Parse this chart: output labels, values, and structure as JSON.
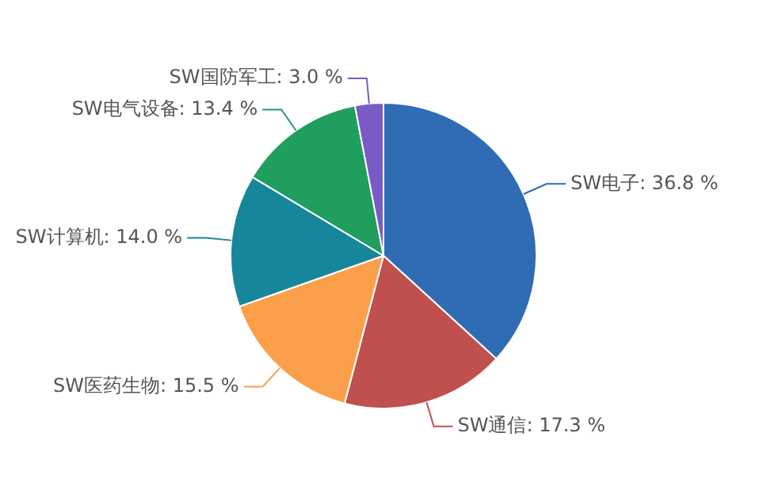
{
  "chart_data": {
    "type": "pie",
    "categories": [
      "SW电子",
      "SW通信",
      "SW医药生物",
      "SW计算机",
      "SW电气设备",
      "SW国防军工"
    ],
    "values": [
      36.8,
      17.3,
      15.5,
      14.0,
      13.4,
      3.0
    ],
    "value_labels": [
      "36.8 %",
      "17.3 %",
      "15.5 %",
      "14.0 %",
      "13.4 %",
      "3.0 %"
    ],
    "colors": [
      "#2f6cb3",
      "#c0504d",
      "#fb9f4b",
      "#16879a",
      "#1f9e5e",
      "#7b5ac6"
    ],
    "legend": false
  }
}
